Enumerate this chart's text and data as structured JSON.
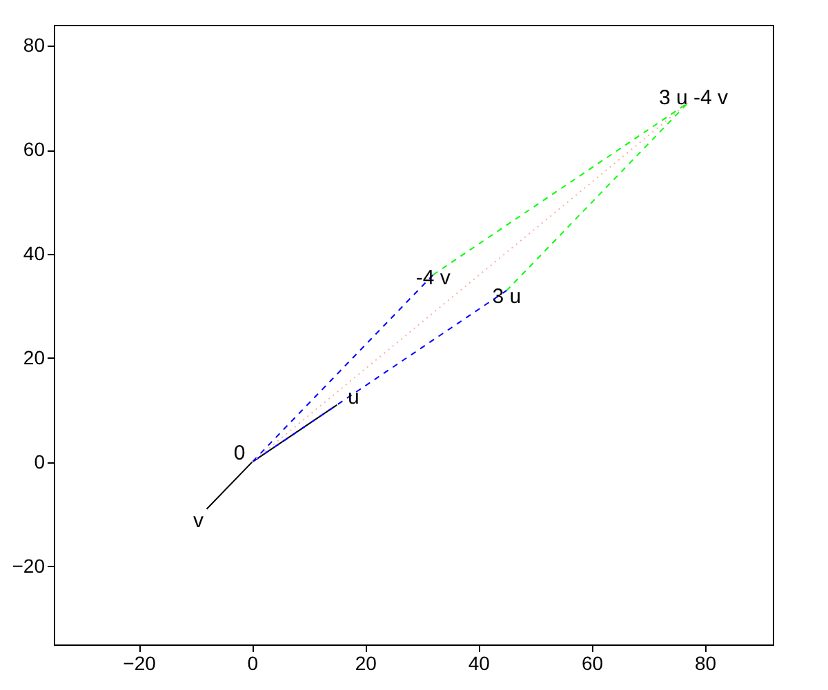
{
  "chart_data": {
    "type": "line",
    "series": [
      {
        "color": "#000000",
        "line_style": "solid",
        "x": [
          -8,
          0,
          15
        ],
        "values": [
          -9,
          0,
          11
        ]
      },
      {
        "color": "#0000ff",
        "line_style": "dashed",
        "x": [
          32,
          0,
          45
        ],
        "values": [
          36,
          0,
          33
        ]
      },
      {
        "color": "#00ff00",
        "line_style": "dashed",
        "x": [
          32,
          77,
          45
        ],
        "values": [
          36,
          69,
          33
        ]
      },
      {
        "color": "#ffaaaa",
        "line_style": "dotted",
        "x": [
          0,
          77
        ],
        "values": [
          0,
          69
        ]
      }
    ],
    "annotations": [
      {
        "text": "0",
        "x": 0,
        "y": 0
      },
      {
        "text": "u",
        "x": 15,
        "y": 11
      },
      {
        "text": "v",
        "x": -8,
        "y": -9
      },
      {
        "text": "-4 v",
        "x": 32,
        "y": 36
      },
      {
        "text": "3 u",
        "x": 45,
        "y": 33
      },
      {
        "text": "3 u -4 v",
        "x": 77,
        "y": 69
      }
    ],
    "xlim": [
      -35,
      92
    ],
    "ylim": [
      -35,
      84
    ],
    "xticks": [
      -20,
      0,
      20,
      40,
      60,
      80
    ],
    "yticks": [
      -20,
      0,
      20,
      40,
      60,
      80
    ],
    "grid": false,
    "marker": "none"
  }
}
